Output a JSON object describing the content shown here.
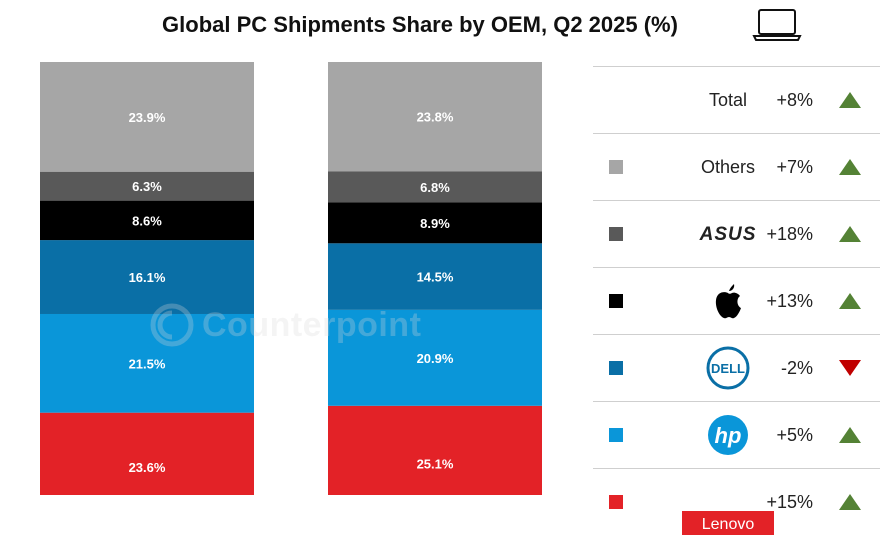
{
  "title": "Global PC Shipments Share by OEM, Q2 2025 (%)",
  "watermark": "Counterpoint",
  "chart_data": {
    "type": "bar",
    "stacked": true,
    "orientation": "vertical",
    "categories": [
      "",
      ""
    ],
    "series": [
      {
        "name": "Lenovo",
        "color": "#E32227",
        "values": [
          23.6,
          25.1
        ]
      },
      {
        "name": "HP",
        "color": "#0A96D9",
        "values": [
          21.5,
          20.9
        ]
      },
      {
        "name": "Dell",
        "color": "#0A6FA6",
        "values": [
          16.1,
          14.5
        ]
      },
      {
        "name": "Apple",
        "color": "#000000",
        "values": [
          8.6,
          8.9
        ]
      },
      {
        "name": "ASUS",
        "color": "#595959",
        "values": [
          6.3,
          6.8
        ]
      },
      {
        "name": "Others",
        "color": "#A6A6A6",
        "values": [
          23.9,
          23.8
        ]
      }
    ],
    "labels": [
      [
        "23.6%",
        "21.5%",
        "16.1%",
        "8.6%",
        "6.3%",
        "23.9%"
      ],
      [
        "25.1%",
        "20.9%",
        "14.5%",
        "8.9%",
        "6.8%",
        "23.8%"
      ]
    ]
  },
  "legend": {
    "rows": [
      {
        "name": "Total",
        "logo": "text",
        "growth": "+8%",
        "direction": "up",
        "color": null
      },
      {
        "name": "Others",
        "logo": "text",
        "growth": "+7%",
        "direction": "up",
        "color": "#A6A6A6"
      },
      {
        "name": "ASUS",
        "logo": "asus-logo",
        "growth": "+18%",
        "direction": "up",
        "color": "#595959"
      },
      {
        "name": "Apple",
        "logo": "apple-logo",
        "growth": "+13%",
        "direction": "up",
        "color": "#000000"
      },
      {
        "name": "Dell",
        "logo": "dell-logo",
        "growth": "-2%",
        "direction": "down",
        "color": "#0A6FA6"
      },
      {
        "name": "HP",
        "logo": "hp-logo",
        "growth": "+5%",
        "direction": "up",
        "color": "#0A96D9"
      },
      {
        "name": "Lenovo",
        "logo": "lenovo-logo",
        "growth": "+15%",
        "direction": "up",
        "color": "#E32227"
      }
    ],
    "up_color": "#548235",
    "down_color": "#C00000"
  }
}
